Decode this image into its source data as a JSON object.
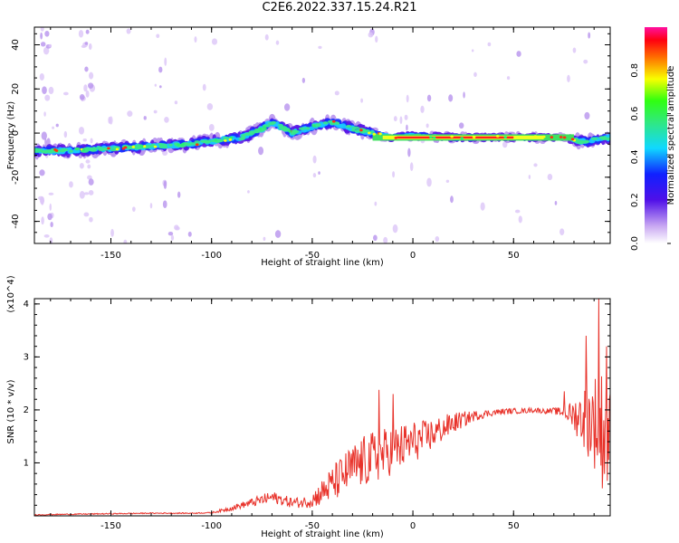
{
  "title": "C2E6.2022.337.15.24.R21",
  "colors": {
    "snr_line": "#e8322a",
    "axis": "#000000",
    "background": "#ffffff"
  },
  "chart_data": [
    {
      "type": "heatmap",
      "xlabel": "Height of straight line (km)",
      "ylabel": "Frequency (Hz)",
      "xlim": [
        -188,
        98
      ],
      "ylim": [
        -50,
        48
      ],
      "xticks": [
        -150,
        -100,
        -50,
        0,
        50
      ],
      "yticks": [
        -40,
        -20,
        0,
        20,
        40
      ],
      "colorbar": {
        "label": "Normalized spectral amplitude",
        "range": [
          0.0,
          1.0
        ],
        "ticks": [
          0.0,
          0.2,
          0.4,
          0.6,
          0.8
        ],
        "colormap": "rainbow (white-purple-blue-cyan-green-yellow-red-magenta)"
      },
      "ridge": {
        "x": [
          -188,
          -170,
          -150,
          -130,
          -110,
          -95,
          -85,
          -75,
          -70,
          -60,
          -50,
          -40,
          -30,
          -20,
          -10,
          0,
          20,
          40,
          60,
          75,
          85,
          98
        ],
        "y": [
          -8,
          -8,
          -7,
          -6,
          -5,
          -3,
          -2,
          2,
          5,
          0,
          3,
          5,
          2,
          0,
          -2,
          -1,
          -2,
          -2,
          -2,
          -2,
          -4,
          -2
        ]
      },
      "peak_band": {
        "x_range": [
          -20,
          80
        ],
        "y": -2,
        "amplitude": 1.0
      }
    },
    {
      "type": "line",
      "xlabel": "Height of straight line (km)",
      "ylabel": "SNR (10 * v/v)",
      "y_multiplier": "(x10^4)",
      "xlim": [
        -188,
        98
      ],
      "ylim": [
        0,
        4.1
      ],
      "xticks": [
        -150,
        -100,
        -50,
        0,
        50
      ],
      "yticks": [
        1,
        2,
        3,
        4
      ],
      "series": [
        {
          "x": [
            -188,
            -170,
            -150,
            -130,
            -110,
            -100,
            -95,
            -90,
            -85,
            -80,
            -75,
            -70,
            -65,
            -60,
            -55,
            -50,
            -45,
            -40,
            -35,
            -30,
            -25,
            -20,
            -15,
            -10,
            -5,
            0,
            5,
            10,
            15,
            20,
            25,
            30,
            35,
            40,
            45,
            50,
            55,
            60,
            65,
            70,
            75,
            80,
            85,
            90,
            95,
            98
          ],
          "values": [
            0.02,
            0.03,
            0.04,
            0.05,
            0.05,
            0.06,
            0.1,
            0.15,
            0.2,
            0.25,
            0.3,
            0.35,
            0.3,
            0.25,
            0.25,
            0.3,
            0.45,
            0.6,
            0.75,
            0.9,
            1.0,
            1.1,
            1.15,
            1.25,
            1.3,
            1.4,
            1.45,
            1.55,
            1.65,
            1.75,
            1.82,
            1.88,
            1.92,
            1.95,
            1.97,
            1.98,
            1.98,
            2.0,
            1.98,
            1.98,
            1.95,
            1.9,
            1.85,
            1.8,
            1.6,
            1.4
          ],
          "noise_amplitude": [
            0.01,
            0.01,
            0.01,
            0.01,
            0.01,
            0.01,
            0.03,
            0.05,
            0.06,
            0.08,
            0.1,
            0.12,
            0.1,
            0.1,
            0.1,
            0.15,
            0.25,
            0.35,
            0.4,
            0.45,
            0.5,
            0.5,
            0.5,
            0.45,
            0.45,
            0.4,
            0.35,
            0.3,
            0.25,
            0.2,
            0.15,
            0.1,
            0.08,
            0.06,
            0.06,
            0.05,
            0.05,
            0.05,
            0.05,
            0.06,
            0.1,
            0.3,
            0.6,
            0.9,
            1.2,
            1.0
          ],
          "spikes": [
            [
              -17,
              2.38
            ],
            [
              -10,
              2.3
            ],
            [
              75,
              2.35
            ],
            [
              86,
              3.4
            ],
            [
              92,
              4.1
            ],
            [
              96,
              3.2
            ]
          ]
        }
      ]
    }
  ]
}
